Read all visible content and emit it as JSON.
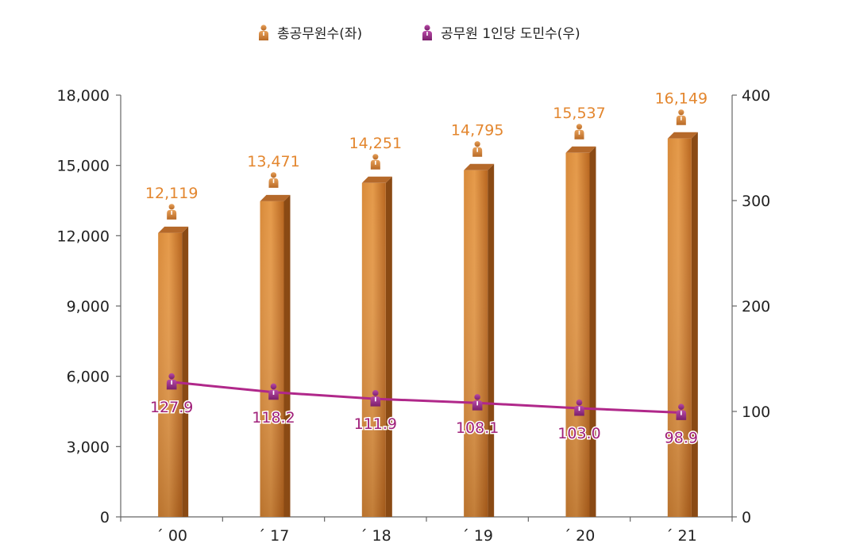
{
  "chart_data": {
    "type": "bar",
    "categories": [
      "´ 00",
      "´ 17",
      "´ 18",
      "´ 19",
      "´ 20",
      "´ 21"
    ],
    "series": [
      {
        "name": "총공무원수(좌)",
        "type": "bar",
        "axis": "left",
        "values": [
          12119,
          13471,
          14251,
          14795,
          15537,
          16149
        ],
        "labels": [
          "12,119",
          "13,471",
          "14,251",
          "14,795",
          "15,537",
          "16,149"
        ]
      },
      {
        "name": "공무원 1인당 도민수(우)",
        "type": "line",
        "axis": "right",
        "values": [
          127.9,
          118.2,
          111.9,
          108.1,
          103.0,
          98.9
        ],
        "labels": [
          "127.9",
          "118.2",
          "111.9",
          "108.1",
          "103.0",
          "98.9"
        ]
      }
    ],
    "y_left": {
      "range": [
        0,
        18000
      ],
      "ticks": [
        "0",
        "3,000",
        "6,000",
        "9,000",
        "12,000",
        "15,000",
        "18,000"
      ],
      "tick_values": [
        0,
        3000,
        6000,
        9000,
        12000,
        15000,
        18000
      ]
    },
    "y_right": {
      "range": [
        0,
        400
      ],
      "ticks": [
        "0",
        "100",
        "200",
        "300",
        "400"
      ],
      "tick_values": [
        0,
        100,
        200,
        300,
        400
      ]
    },
    "legend_position": "top-center",
    "grid": false,
    "colors": {
      "bar": "#c9752a",
      "bar_label": "#e3862e",
      "line": "#b0288a",
      "line_label": "#a0207a"
    },
    "icons": [
      "person-icon"
    ]
  }
}
